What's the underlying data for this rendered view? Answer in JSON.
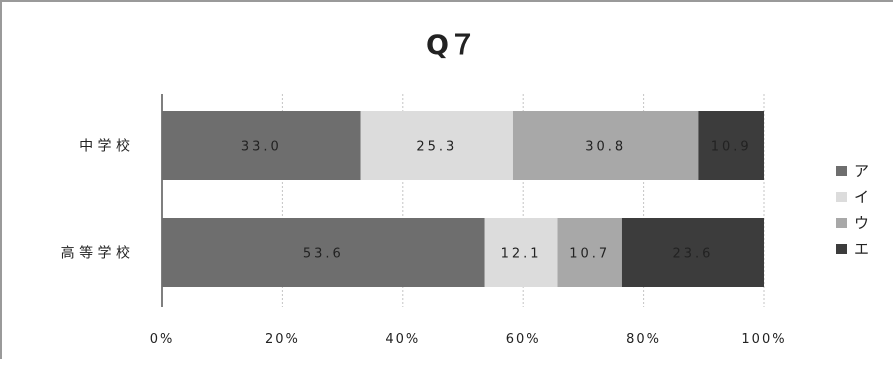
{
  "chart_data": {
    "type": "bar",
    "orientation": "horizontal",
    "stacked": "percent",
    "title": "Q７",
    "categories": [
      "中学校",
      "高等学校"
    ],
    "category_labels": [
      "中 学 校",
      "高 等 学 校"
    ],
    "series": [
      {
        "name": "ア",
        "values": [
          33.0,
          53.6
        ],
        "labels": [
          "33.0",
          "53.6"
        ],
        "color": "#6e6e6e"
      },
      {
        "name": "イ",
        "values": [
          25.3,
          12.1
        ],
        "labels": [
          "25.3",
          "12.1"
        ],
        "color": "#dcdcdc"
      },
      {
        "name": "ウ",
        "values": [
          30.8,
          10.7
        ],
        "labels": [
          "30.8",
          "10.7"
        ],
        "color": "#a8a8a8"
      },
      {
        "name": "エ",
        "values": [
          10.9,
          23.6
        ],
        "labels": [
          "10.9",
          "23.6"
        ],
        "color": "#3c3c3c"
      }
    ],
    "xlim": [
      0,
      100
    ],
    "xticks": [
      "0%",
      "20%",
      "40%",
      "60%",
      "80%",
      "100%"
    ],
    "grid": true,
    "legend": "right"
  }
}
